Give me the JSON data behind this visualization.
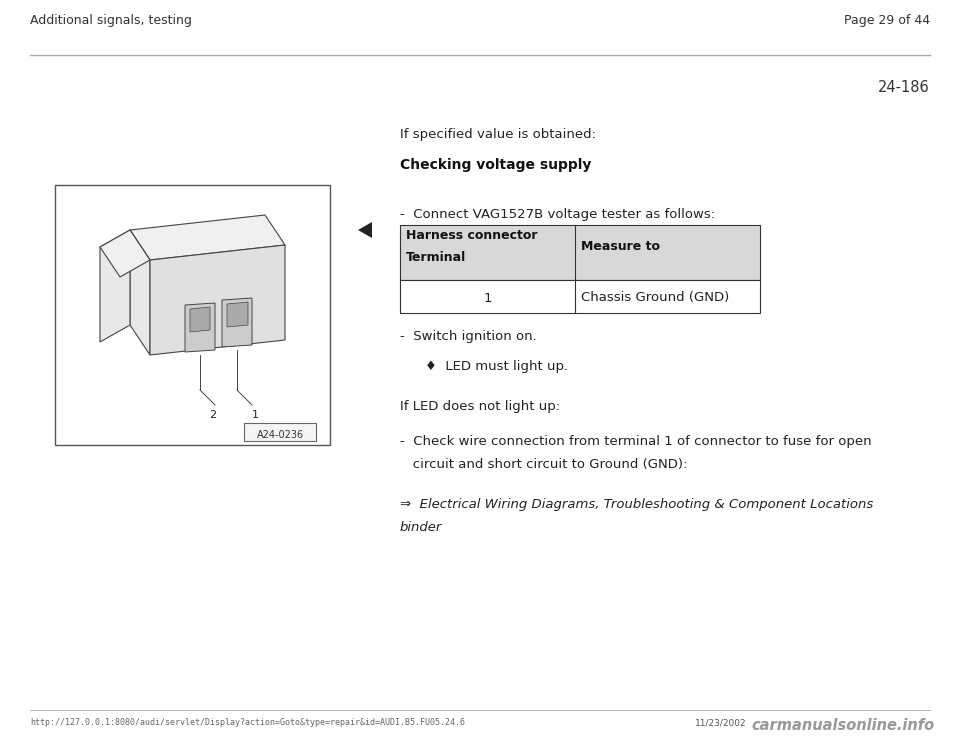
{
  "bg_color": "#ffffff",
  "header_left": "Additional signals, testing",
  "header_right": "Page 29 of 44",
  "page_num": "24-186",
  "section_intro": "If specified value is obtained:",
  "section_heading": "Checking voltage supply",
  "connect_note": "-  Connect VAG1527B voltage tester as follows:",
  "table_header_col1a": "Harness connector",
  "table_header_col1b": "Terminal",
  "table_header_col2": "Measure to",
  "table_row_col1": "1",
  "table_row_col2": "Chassis Ground (GND)",
  "bullet1": "-  Switch ignition on.",
  "bullet2": "♦  LED must light up.",
  "para2": "If LED does not light up:",
  "bullet3a": "-  Check wire connection from terminal 1 of connector to fuse for open",
  "bullet3b": "   circuit and short circuit to Ground (GND):",
  "ref1": "⇒  Electrical Wiring Diagrams, Troubleshooting & Component Locations",
  "ref2": "binder",
  "footer_url": "http://127.0.0.1:8080/audi/servlet/Display?action=Goto&type=repair&id=AUDI.B5.FU05.24.6",
  "footer_date": "11/23/2002",
  "footer_logo": "carmanualsonline.info",
  "img_label": "A24-0236"
}
